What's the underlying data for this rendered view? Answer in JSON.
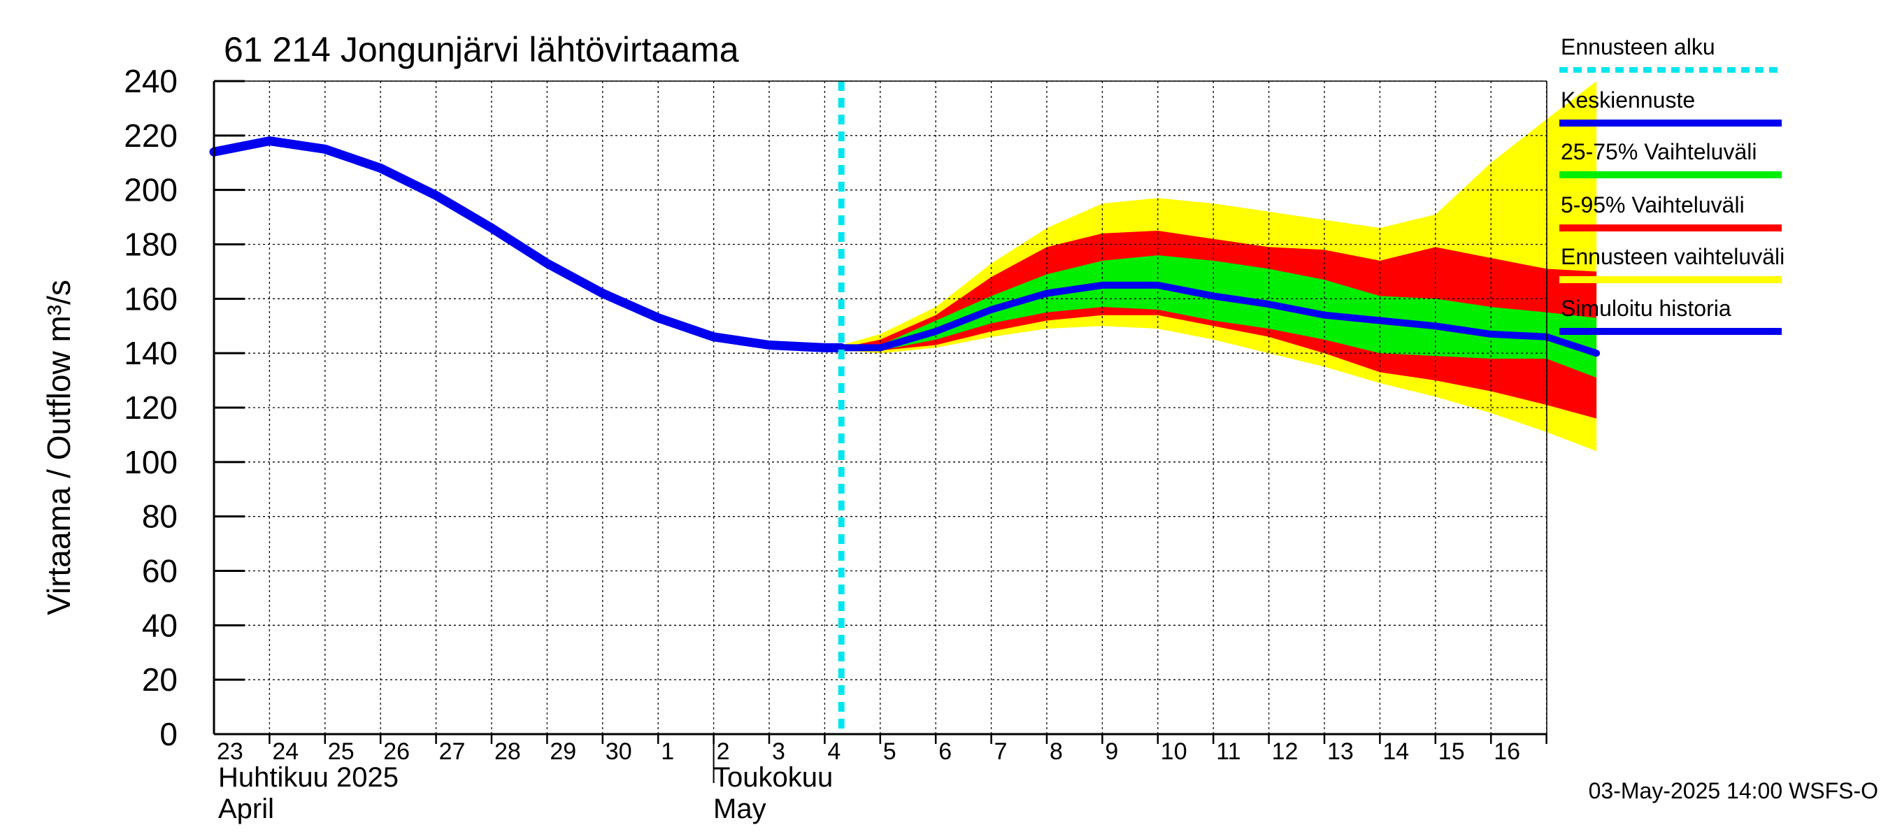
{
  "chart_data": {
    "type": "area",
    "title": "61 214 Jongunjärvi lähtövirtaama",
    "ylabel": "Virtaama / Outflow    m³/s",
    "ylim": [
      0,
      240
    ],
    "yticks": [
      "0",
      "20",
      "40",
      "60",
      "80",
      "100",
      "120",
      "140",
      "160",
      "180",
      "200",
      "220",
      "240"
    ],
    "x_tick_labels": [
      "23",
      "24",
      "25",
      "26",
      "27",
      "28",
      "29",
      "30",
      "1",
      "2",
      "3",
      "4",
      "5",
      "6",
      "7",
      "8",
      "9",
      "10",
      "11",
      "12",
      "13",
      "14",
      "15",
      "16"
    ],
    "month_labels": [
      {
        "fi": "Huhtikuu  2025",
        "en": "April"
      },
      {
        "fi": "Toukokuu",
        "en": "May"
      }
    ],
    "grid": true,
    "legend_position": "right",
    "forecast_start_day": 10.3,
    "legend": [
      {
        "label": "Ennusteen alku",
        "color": "#00e5ee",
        "style": "dashed"
      },
      {
        "label": "Keskiennuste",
        "color": "#0000ee",
        "style": "line"
      },
      {
        "label": "25-75% Vaihteluväli",
        "color": "#00ee00",
        "style": "band"
      },
      {
        "label": "5-95% Vaihteluväli",
        "color": "#ff0000",
        "style": "band"
      },
      {
        "label": "Ennusteen vaihteluväli",
        "color": "#ffff00",
        "style": "band"
      },
      {
        "label": "Simuloitu historia",
        "color": "#0000ee",
        "style": "line"
      }
    ],
    "series": [
      {
        "name": "Simuloitu historia",
        "x": [
          -1,
          0,
          1,
          2,
          3,
          4,
          5,
          6,
          7,
          8,
          9,
          10,
          10.3
        ],
        "values": [
          214,
          218,
          215,
          208,
          198,
          186,
          173,
          162,
          153,
          146,
          143,
          142,
          142
        ]
      },
      {
        "name": "Keskiennuste",
        "x": [
          10.3,
          11,
          12,
          13,
          14,
          15,
          16,
          17,
          18,
          19,
          20,
          21,
          22,
          23,
          23.9
        ],
        "values": [
          142,
          142,
          148,
          156,
          162,
          165,
          165,
          161,
          158,
          154,
          152,
          150,
          147,
          146,
          140
        ]
      },
      {
        "name": "Ennusteen vaihteluväli",
        "x": [
          10.3,
          11,
          12,
          13,
          14,
          15,
          16,
          17,
          18,
          19,
          20,
          21,
          22,
          23,
          23.9
        ],
        "upper": [
          143,
          147,
          157,
          173,
          186,
          195,
          197,
          195,
          192,
          189,
          186,
          191,
          210,
          226,
          240
        ],
        "lower": [
          141,
          140,
          142,
          146,
          149,
          150,
          149,
          145,
          140,
          135,
          129,
          124,
          118,
          111,
          104
        ]
      },
      {
        "name": "5-95% Vaihteluväli",
        "x": [
          10.3,
          11,
          12,
          13,
          14,
          15,
          16,
          17,
          18,
          19,
          20,
          21,
          22,
          23,
          23.9
        ],
        "upper": [
          142,
          145,
          154,
          168,
          179,
          184,
          185,
          182,
          179,
          178,
          174,
          179,
          175,
          171,
          170
        ],
        "lower": [
          141,
          141,
          143,
          148,
          152,
          154,
          154,
          150,
          146,
          140,
          133,
          130,
          126,
          121,
          116
        ]
      },
      {
        "name": "25-75% Vaihteluväli",
        "x": [
          10.3,
          11,
          12,
          13,
          14,
          15,
          16,
          17,
          18,
          19,
          20,
          21,
          22,
          23,
          23.9
        ],
        "upper": [
          142,
          143,
          152,
          161,
          169,
          174,
          176,
          174,
          171,
          167,
          161,
          160,
          157,
          155,
          153
        ],
        "lower": [
          142,
          141,
          145,
          151,
          155,
          157,
          156,
          152,
          149,
          145,
          140,
          139,
          138,
          138,
          131
        ]
      }
    ]
  },
  "footer": "03-May-2025 14:00 WSFS-O"
}
